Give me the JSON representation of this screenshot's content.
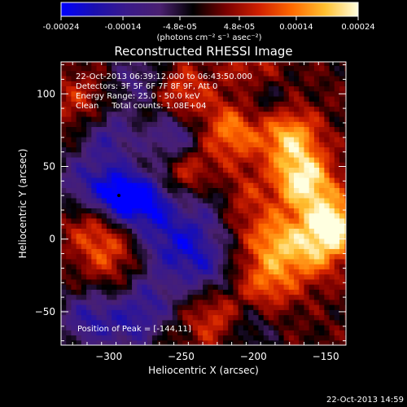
{
  "colorbar": {
    "ticks": [
      "-0.00024",
      "-0.00014",
      "-4.8e-05",
      "4.8e-05",
      "0.00014",
      "0.00024"
    ],
    "tick_values": [
      -0.00024,
      -0.00014,
      -4.8e-05,
      4.8e-05,
      0.00014,
      0.00024
    ],
    "range": [
      -0.00024,
      0.00024
    ],
    "units_label": "(photons cm⁻² s⁻¹ asec⁻²)",
    "stops": [
      "#0000ff",
      "#1a0fb0",
      "#3a1a8a",
      "#4a2070",
      "#000000",
      "#7a0000",
      "#d02000",
      "#ff6a00",
      "#ffc030",
      "#ffffe0"
    ]
  },
  "chart_data": {
    "type": "heatmap",
    "title": "Reconstructed RHESSI Image",
    "xlabel": "Heliocentric X (arcsec)",
    "ylabel": "Heliocentric Y (arcsec)",
    "xlim": [
      -333,
      -136
    ],
    "ylim": [
      -73,
      122
    ],
    "xticks": [
      -300,
      -250,
      -200,
      -150
    ],
    "yticks": [
      100,
      50,
      0,
      -50
    ],
    "annotations": [
      "22-Oct-2013 06:39:12.000 to 06:43:50.000",
      "Detectors: 3F 5F 6F 7F 8F 9F, Att 0",
      "Energy Range: 25.0 - 50.0 keV",
      "Clean     Total counts: 1.08E+04"
    ],
    "peak_label": "Position of Peak = [-144,11]",
    "peak_position": [
      -144,
      11
    ],
    "min_marker": [
      -293,
      30
    ],
    "hot_spots": [
      {
        "x": -145,
        "y": 10,
        "v": 1.0
      },
      {
        "x": -165,
        "y": 40,
        "v": 0.95
      },
      {
        "x": -175,
        "y": 70,
        "v": 0.75
      },
      {
        "x": -185,
        "y": 0,
        "v": 0.6
      },
      {
        "x": -190,
        "y": -30,
        "v": 0.5
      },
      {
        "x": -215,
        "y": 75,
        "v": 0.6
      },
      {
        "x": -245,
        "y": 45,
        "v": 0.5
      },
      {
        "x": -250,
        "y": 100,
        "v": 0.45
      },
      {
        "x": -200,
        "y": 115,
        "v": 0.4
      },
      {
        "x": -310,
        "y": 10,
        "v": 0.35
      },
      {
        "x": -300,
        "y": -10,
        "v": 0.35
      },
      {
        "x": -225,
        "y": -55,
        "v": 0.45
      },
      {
        "x": -160,
        "y": -10,
        "v": 0.5
      },
      {
        "x": -210,
        "y": 30,
        "v": 0.35
      },
      {
        "x": -320,
        "y": 95,
        "v": 0.3
      }
    ],
    "cold_spots": [
      {
        "x": -293,
        "y": 30,
        "v": -1.0
      },
      {
        "x": -270,
        "y": 25,
        "v": -0.75
      },
      {
        "x": -300,
        "y": 70,
        "v": -0.55
      },
      {
        "x": -260,
        "y": -5,
        "v": -0.5
      },
      {
        "x": -235,
        "y": -20,
        "v": -0.55
      },
      {
        "x": -255,
        "y": 70,
        "v": -0.6
      },
      {
        "x": -315,
        "y": -55,
        "v": -0.6
      },
      {
        "x": -285,
        "y": -60,
        "v": -0.5
      },
      {
        "x": -270,
        "y": -40,
        "v": -0.45
      },
      {
        "x": -230,
        "y": 30,
        "v": -0.4
      },
      {
        "x": -195,
        "y": 100,
        "v": -0.35
      },
      {
        "x": -280,
        "y": 110,
        "v": -0.45
      },
      {
        "x": -205,
        "y": -60,
        "v": -0.35
      },
      {
        "x": -240,
        "y": 5,
        "v": -0.4
      },
      {
        "x": -320,
        "y": 40,
        "v": -0.45
      }
    ]
  },
  "footer": {
    "timestamp": "22-Oct-2013 14:59"
  }
}
